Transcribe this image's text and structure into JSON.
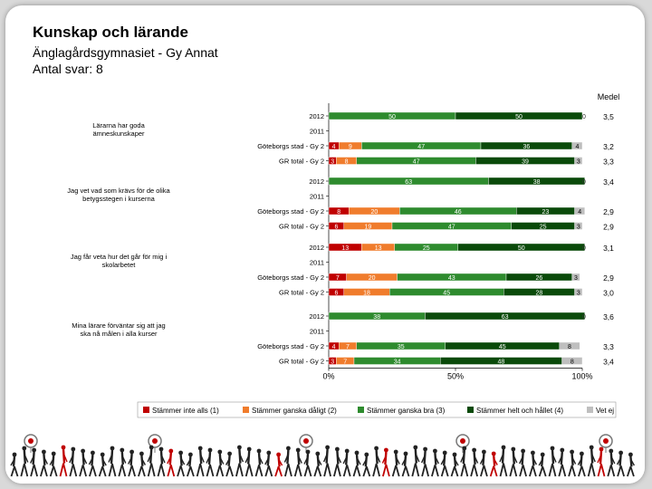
{
  "header": {
    "title": "Kunskap och lärande",
    "subtitle": "Änglagårdsgymnasiet - Gy Annat",
    "responses": "Antal svar: 8"
  },
  "chart_data": {
    "type": "bar",
    "orientation": "horizontal-stacked-100",
    "mean_header": "Medel",
    "x_ticks": [
      "0%",
      "50%",
      "100%"
    ],
    "xlim": [
      0,
      100
    ],
    "colors": [
      "#c00000",
      "#f07c2c",
      "#2e8b2e",
      "#0a4a0a",
      "#bfbfbf"
    ],
    "legend": [
      "Stämmer inte alls (1)",
      "Stämmer ganska dåligt (2)",
      "Stämmer ganska bra (3)",
      "Stämmer helt och hållet (4)",
      "Vet ej"
    ],
    "groups": [
      {
        "question": [
          "Lärarna har goda",
          "ämneskunskaper"
        ],
        "rows": [
          {
            "label": "2012",
            "values": [
              0,
              0,
              50,
              50,
              0
            ],
            "labels": [
              "0",
              "",
              "50",
              "50",
              "0"
            ],
            "mean": "3,5"
          },
          {
            "label": "2011",
            "values": [
              0,
              0,
              0,
              0,
              0
            ],
            "labels": [
              "",
              "",
              "",
              "",
              ""
            ],
            "mean": ""
          },
          {
            "label": "Göteborgs stad - Gy 2",
            "values": [
              4,
              9,
              47,
              36,
              4
            ],
            "labels": [
              "4",
              "9",
              "47",
              "36",
              "4"
            ],
            "mean": "3,2"
          },
          {
            "label": "GR total - Gy 2",
            "values": [
              3,
              8,
              47,
              39,
              3
            ],
            "labels": [
              "3",
              "8",
              "47",
              "39",
              "3"
            ],
            "mean": "3,3"
          }
        ]
      },
      {
        "question": [
          "Jag vet vad som krävs för de olika",
          "betygsstegen i kurserna"
        ],
        "rows": [
          {
            "label": "2012",
            "values": [
              0,
              0,
              63,
              38,
              0
            ],
            "labels": [
              "0",
              "",
              "63",
              "38",
              "0"
            ],
            "mean": "3,4"
          },
          {
            "label": "2011",
            "values": [
              0,
              0,
              0,
              0,
              0
            ],
            "labels": [
              "",
              "",
              "",
              "",
              ""
            ],
            "mean": ""
          },
          {
            "label": "Göteborgs stad - Gy 2",
            "values": [
              8,
              20,
              46,
              23,
              4
            ],
            "labels": [
              "8",
              "20",
              "46",
              "23",
              "4"
            ],
            "mean": "2,9"
          },
          {
            "label": "GR total - Gy 2",
            "values": [
              6,
              19,
              47,
              25,
              3
            ],
            "labels": [
              "6",
              "19",
              "47",
              "25",
              "3"
            ],
            "mean": "2,9"
          }
        ]
      },
      {
        "question": [
          "Jag får veta hur det går för mig i",
          "skolarbetet"
        ],
        "rows": [
          {
            "label": "2012",
            "values": [
              13,
              13,
              25,
              50,
              0
            ],
            "labels": [
              "13",
              "13",
              "25",
              "50",
              "0"
            ],
            "mean": "3,1"
          },
          {
            "label": "2011",
            "values": [
              0,
              0,
              0,
              0,
              0
            ],
            "labels": [
              "",
              "",
              "",
              "",
              ""
            ],
            "mean": ""
          },
          {
            "label": "Göteborgs stad - Gy 2",
            "values": [
              7,
              20,
              43,
              26,
              3
            ],
            "labels": [
              "7",
              "20",
              "43",
              "26",
              "3"
            ],
            "mean": "2,9"
          },
          {
            "label": "GR total - Gy 2",
            "values": [
              6,
              18,
              45,
              28,
              3
            ],
            "labels": [
              "6",
              "18",
              "45",
              "28",
              "3"
            ],
            "mean": "3,0"
          }
        ]
      },
      {
        "question": [
          "Mina lärare förväntar sig att jag",
          "ska nå målen i alla kurser"
        ],
        "rows": [
          {
            "label": "2012",
            "values": [
              0,
              0,
              38,
              63,
              0
            ],
            "labels": [
              "0",
              "",
              "38",
              "63",
              "0"
            ],
            "mean": "3,6"
          },
          {
            "label": "2011",
            "values": [
              0,
              0,
              0,
              0,
              0
            ],
            "labels": [
              "",
              "",
              "",
              "",
              ""
            ],
            "mean": ""
          },
          {
            "label": "Göteborgs stad - Gy 2",
            "values": [
              4,
              7,
              35,
              45,
              8
            ],
            "labels": [
              "4",
              "7",
              "35",
              "45",
              "8"
            ],
            "mean": "3,3"
          },
          {
            "label": "GR total - Gy 2",
            "values": [
              3,
              7,
              34,
              48,
              8
            ],
            "labels": [
              "3",
              "7",
              "34",
              "48",
              "8"
            ],
            "mean": "3,4"
          }
        ]
      }
    ]
  }
}
